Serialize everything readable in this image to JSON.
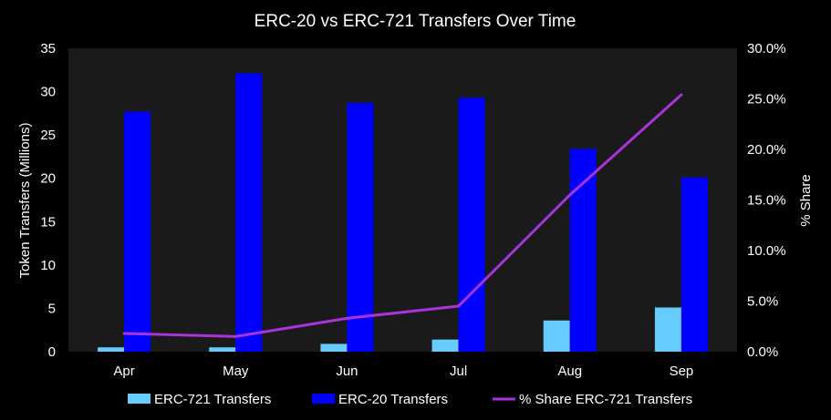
{
  "chart_data": {
    "type": "bar",
    "title": "ERC-20 vs ERC-721 Transfers  Over Time",
    "categories": [
      "Apr",
      "May",
      "Jun",
      "Jul",
      "Aug",
      "Sep"
    ],
    "ylabel": "Token Transfers (Millions)",
    "y2label": "% Share",
    "ylim": [
      0,
      35
    ],
    "y2lim": [
      0,
      30
    ],
    "yticks": [
      "0",
      "5",
      "10",
      "15",
      "20",
      "25",
      "30",
      "35"
    ],
    "y2ticks": [
      "0.0%",
      "5.0%",
      "10.0%",
      "15.0%",
      "20.0%",
      "25.0%",
      "30.0%"
    ],
    "series": [
      {
        "name": "ERC-721 Transfers",
        "type": "bar",
        "axis": "left",
        "color": "#66ccff",
        "values": [
          0.5,
          0.5,
          0.9,
          1.4,
          3.6,
          5.1
        ]
      },
      {
        "name": "ERC-20 Transfers",
        "type": "bar",
        "axis": "left",
        "color": "#0000ff",
        "values": [
          27.7,
          32.1,
          28.7,
          29.3,
          23.4,
          20.1
        ]
      },
      {
        "name": "% Share ERC-721 Transfers",
        "type": "line",
        "axis": "right",
        "color": "#aa33dd",
        "values": [
          1.8,
          1.5,
          3.3,
          4.5,
          15.5,
          25.4
        ]
      }
    ],
    "legend": "bottom",
    "plot_background": "#1a1a1a",
    "grid": false
  }
}
